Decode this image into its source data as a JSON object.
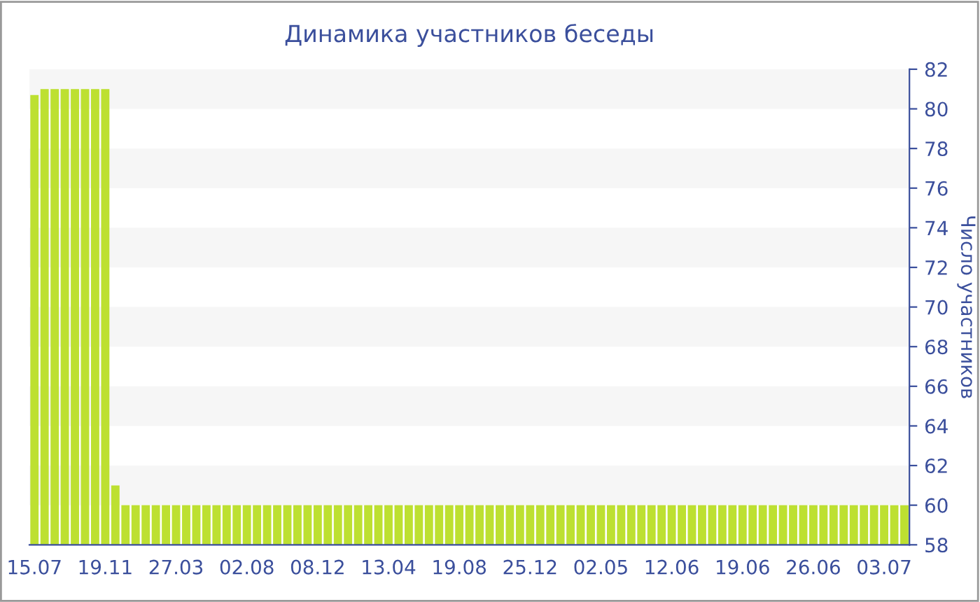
{
  "chart_data": {
    "type": "bar",
    "title": "Динамика участников беседы",
    "ylabel": "Число участников",
    "categories": [
      "15.07",
      null,
      null,
      null,
      null,
      null,
      null,
      "19.11",
      null,
      null,
      null,
      null,
      null,
      null,
      "27.03",
      null,
      null,
      null,
      null,
      null,
      null,
      "02.08",
      null,
      null,
      null,
      null,
      null,
      null,
      "08.12",
      null,
      null,
      null,
      null,
      null,
      null,
      "13.04",
      null,
      null,
      null,
      null,
      null,
      null,
      "19.08",
      null,
      null,
      null,
      null,
      null,
      null,
      "25.12",
      null,
      null,
      null,
      null,
      null,
      null,
      "02.05",
      null,
      null,
      null,
      null,
      null,
      null,
      "12.06",
      null,
      null,
      null,
      null,
      null,
      null,
      "19.06",
      null,
      null,
      null,
      null,
      null,
      null,
      "26.06",
      null,
      null,
      null,
      null,
      null,
      null,
      "03.07",
      null,
      null
    ],
    "values": [
      80.7,
      81,
      81,
      81,
      81,
      81,
      81,
      81,
      61,
      60,
      60,
      60,
      60,
      60,
      60,
      60,
      60,
      60,
      60,
      60,
      60,
      60,
      60,
      60,
      60,
      60,
      60,
      60,
      60,
      60,
      60,
      60,
      60,
      60,
      60,
      60,
      60,
      60,
      60,
      60,
      60,
      60,
      60,
      60,
      60,
      60,
      60,
      60,
      60,
      60,
      60,
      60,
      60,
      60,
      60,
      60,
      60,
      60,
      60,
      60,
      60,
      60,
      60,
      60,
      60,
      60,
      60,
      60,
      60,
      60,
      60,
      60,
      60,
      60,
      60,
      60,
      60,
      60,
      60,
      60,
      60,
      60,
      60,
      60,
      60,
      60,
      60
    ],
    "color": "#bde031",
    "ylim": [
      58,
      82
    ],
    "yticks": [
      58,
      60,
      62,
      64,
      66,
      68,
      70,
      72,
      74,
      76,
      78,
      80,
      82
    ],
    "bands": [
      {
        "axis": "y",
        "from": 60,
        "to": 62,
        "color": "#f6f6f6"
      },
      {
        "axis": "y",
        "from": 64,
        "to": 66,
        "color": "#f6f6f6"
      },
      {
        "axis": "y",
        "from": 68,
        "to": 70,
        "color": "#f6f6f6"
      },
      {
        "axis": "y",
        "from": 72,
        "to": 74,
        "color": "#f6f6f6"
      },
      {
        "axis": "y",
        "from": 76,
        "to": 78,
        "color": "#f6f6f6"
      },
      {
        "axis": "y",
        "from": 80,
        "to": 82,
        "color": "#f6f6f6"
      }
    ]
  }
}
